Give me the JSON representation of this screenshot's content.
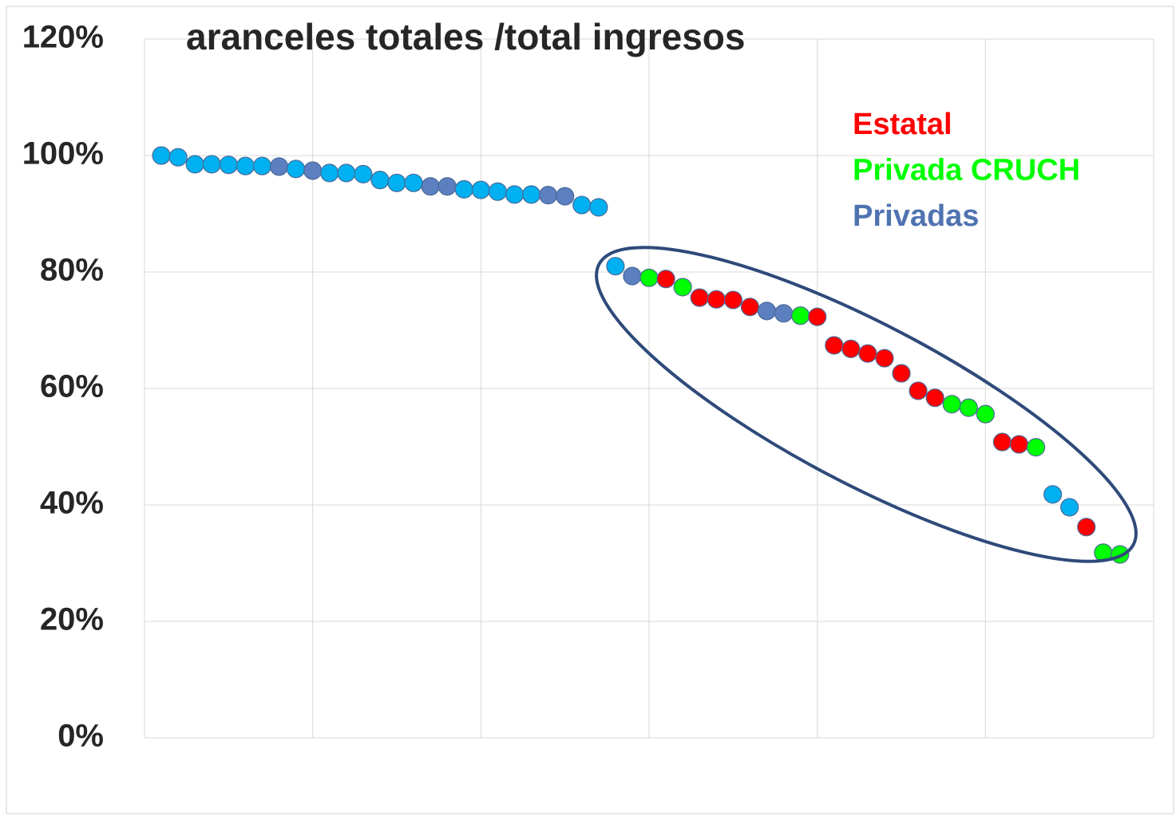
{
  "chart_data": {
    "type": "scatter",
    "title": "aranceles totales /total ingresos",
    "x": [
      1,
      2,
      3,
      4,
      5,
      6,
      7,
      8,
      9,
      10,
      11,
      12,
      13,
      14,
      15,
      16,
      17,
      18,
      19,
      20,
      21,
      22,
      23,
      24,
      25,
      26,
      27,
      28,
      29,
      30,
      31,
      32,
      33,
      34,
      35,
      36,
      37,
      38,
      39,
      40,
      41,
      42,
      43,
      44,
      45,
      46,
      47,
      48,
      49,
      50,
      51,
      52,
      53,
      54,
      55,
      56,
      57,
      58
    ],
    "values": [
      100.0,
      99.7,
      98.5,
      98.5,
      98.4,
      98.2,
      98.2,
      98.1,
      97.7,
      97.4,
      97.0,
      97.0,
      96.8,
      95.8,
      95.3,
      95.3,
      94.7,
      94.7,
      94.2,
      94.1,
      93.8,
      93.3,
      93.3,
      93.2,
      93.0,
      91.5,
      91.1,
      81.0,
      79.3,
      79.0,
      78.8,
      77.4,
      75.6,
      75.3,
      75.2,
      74.0,
      73.3,
      72.9,
      72.5,
      72.3,
      67.4,
      66.8,
      66.0,
      65.2,
      62.6,
      59.6,
      58.4,
      57.3,
      56.7,
      55.6,
      50.8,
      50.4,
      49.9,
      41.8,
      39.6,
      36.2,
      31.8,
      31.5
    ],
    "colors": [
      "#00b0f0",
      "#00b0f0",
      "#00b0f0",
      "#00b0f0",
      "#00b0f0",
      "#00b0f0",
      "#00b0f0",
      "#5b7fbf",
      "#00b0f0",
      "#5b7fbf",
      "#00b0f0",
      "#00b0f0",
      "#00b0f0",
      "#00b0f0",
      "#00b0f0",
      "#00b0f0",
      "#5b7fbf",
      "#5b7fbf",
      "#00b0f0",
      "#00b0f0",
      "#00b0f0",
      "#00b0f0",
      "#00b0f0",
      "#5b7fbf",
      "#5b7fbf",
      "#00b0f0",
      "#00b0f0",
      "#00b0f0",
      "#5b7fbf",
      "#00ff00",
      "#ff0000",
      "#00ff00",
      "#ff0000",
      "#ff0000",
      "#ff0000",
      "#ff0000",
      "#5b7fbf",
      "#5b7fbf",
      "#00ff00",
      "#ff0000",
      "#ff0000",
      "#ff0000",
      "#ff0000",
      "#ff0000",
      "#ff0000",
      "#ff0000",
      "#ff0000",
      "#00ff00",
      "#00ff00",
      "#00ff00",
      "#ff0000",
      "#ff0000",
      "#00ff00",
      "#00b0f0",
      "#00b0f0",
      "#ff0000",
      "#00ff00",
      "#00ff00"
    ],
    "legend": [
      {
        "label": "Estatal",
        "color": "#ff0000"
      },
      {
        "label": "Privada CRUCH",
        "color": "#00ff00"
      },
      {
        "label": "Privadas",
        "color": "#4f73b0"
      }
    ],
    "xlim": [
      0,
      60
    ],
    "xticks": [
      0,
      10,
      20,
      30,
      40,
      50,
      60
    ],
    "ylim": [
      0,
      120
    ],
    "yticks": [
      {
        "value": 0,
        "label": "0%"
      },
      {
        "value": 20,
        "label": "20%"
      },
      {
        "value": 40,
        "label": "40%"
      },
      {
        "value": 60,
        "label": "60%"
      },
      {
        "value": 80,
        "label": "80%"
      },
      {
        "value": 100,
        "label": "100%"
      },
      {
        "value": 120,
        "label": "120%"
      }
    ],
    "grid": true
  }
}
